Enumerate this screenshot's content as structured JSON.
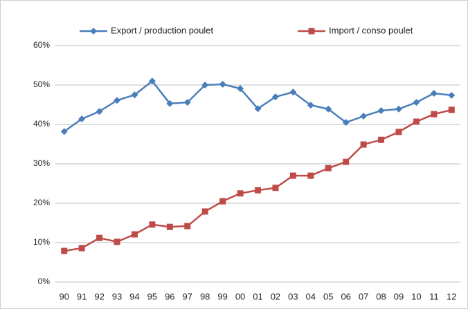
{
  "chart_data": {
    "type": "line",
    "categories": [
      "90",
      "91",
      "92",
      "93",
      "94",
      "95",
      "96",
      "97",
      "98",
      "99",
      "00",
      "01",
      "02",
      "03",
      "04",
      "05",
      "06",
      "07",
      "08",
      "09",
      "10",
      "11",
      "12"
    ],
    "series": [
      {
        "name": "Export / production poulet",
        "color": "#4a7ebb",
        "marker": "diamond",
        "values": [
          38.2,
          41.4,
          43.3,
          46.1,
          47.5,
          51.0,
          45.3,
          45.6,
          50.0,
          50.2,
          49.1,
          44.0,
          47.0,
          48.2,
          44.9,
          43.9,
          40.5,
          42.1,
          43.5,
          43.9,
          45.6,
          47.9,
          47.4
        ]
      },
      {
        "name": "Import / conso poulet",
        "color": "#be4b48",
        "marker": "square",
        "values": [
          7.9,
          8.6,
          11.2,
          10.2,
          12.1,
          14.6,
          14.0,
          14.2,
          17.9,
          20.5,
          22.5,
          23.3,
          23.9,
          27.0,
          27.0,
          28.9,
          30.5,
          34.9,
          36.1,
          38.1,
          40.7,
          42.6,
          43.7
        ]
      }
    ],
    "ylim": [
      0,
      60
    ],
    "yticks": [
      {
        "value": 0,
        "label": "0%"
      },
      {
        "value": 10,
        "label": "10%"
      },
      {
        "value": 20,
        "label": "20%"
      },
      {
        "value": 30,
        "label": "30%"
      },
      {
        "value": 40,
        "label": "40%"
      },
      {
        "value": 50,
        "label": "50%"
      },
      {
        "value": 60,
        "label": "60%"
      }
    ],
    "grid": true,
    "legend": "top"
  }
}
